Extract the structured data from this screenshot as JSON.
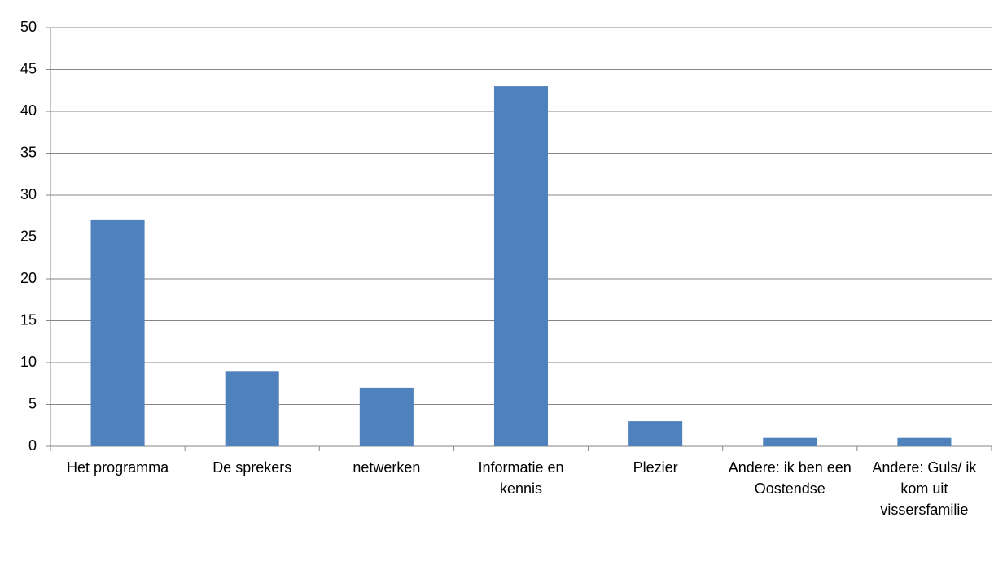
{
  "chart_data": {
    "type": "bar",
    "categories": [
      "Het programma",
      "De sprekers",
      "netwerken",
      "Informatie en kennis",
      "Plezier",
      "Andere: ik ben een Oostendse",
      "Andere: Guls/ ik kom uit vissersfamilie"
    ],
    "values": [
      27,
      9,
      7,
      43,
      3,
      1,
      1
    ],
    "color": "#4f81bd",
    "ylim": [
      0,
      50
    ],
    "yticks": [
      0,
      5,
      10,
      15,
      20,
      25,
      30,
      35,
      40,
      45,
      50
    ],
    "grid": true
  }
}
